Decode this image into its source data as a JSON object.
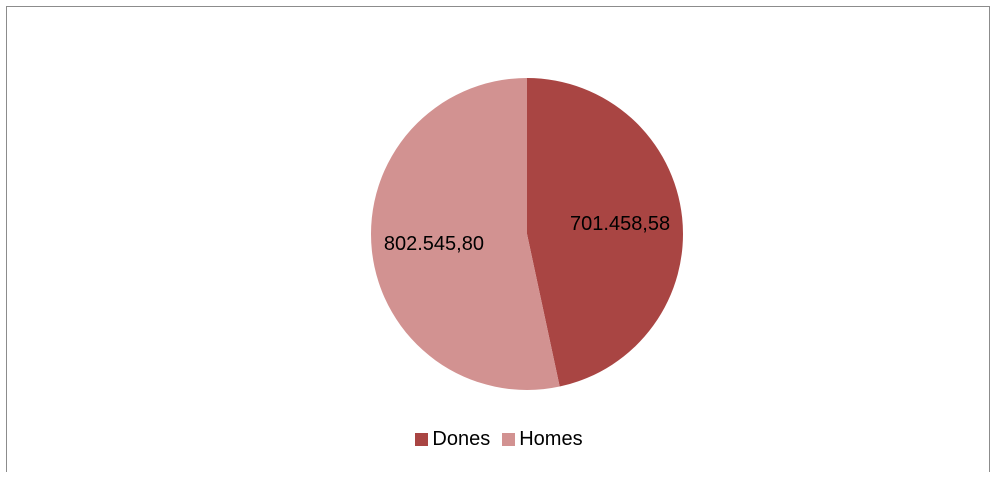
{
  "chart_data": {
    "type": "pie",
    "title": "",
    "categories": [
      "Dones",
      "Homes"
    ],
    "values": [
      701458.58,
      802545.8
    ],
    "data_labels": [
      "701.458,58",
      "802.545,80"
    ],
    "colors": [
      "#a94543",
      "#d29291"
    ],
    "legend_position": "bottom",
    "start_angle_deg": 0,
    "direction": "clockwise"
  },
  "legend": {
    "items": [
      {
        "label": "Dones",
        "color": "#a94543"
      },
      {
        "label": "Homes",
        "color": "#d29291"
      }
    ]
  }
}
